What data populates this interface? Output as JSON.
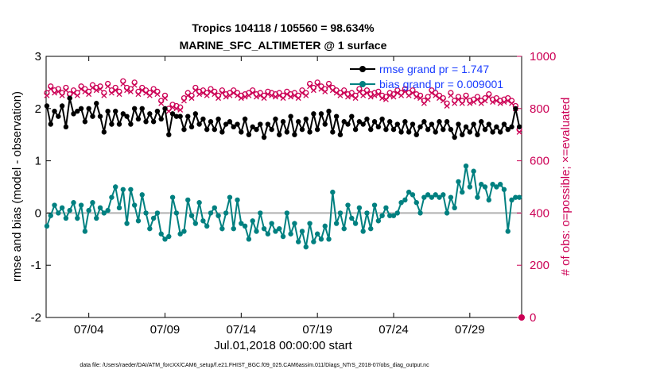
{
  "chart_data": {
    "type": "line",
    "title_line1": "Tropics 104118 / 105560 = 98.634%",
    "title_line2": "MARINE_SFC_ALTIMETER @ 1 surface",
    "xlabel": "Jul.01,2018 00:00:00 start",
    "ylabel_left": "rmse and bias (model - observation)",
    "ylabel_right": "# of obs: o=possible; ×=evaluated",
    "xlim": [
      1.2,
      32.4
    ],
    "ylim_left": [
      -2,
      3
    ],
    "ylim_right": [
      0,
      1000
    ],
    "x_ticks": [
      4,
      9,
      14,
      19,
      24,
      29
    ],
    "x_tick_labels": [
      "07/04",
      "07/09",
      "07/14",
      "07/19",
      "07/24",
      "07/29"
    ],
    "y_ticks_left": [
      -2,
      -1,
      0,
      1,
      2,
      3
    ],
    "y_tick_labels_left": [
      "-2",
      "-1",
      "0",
      "1",
      "2",
      "3"
    ],
    "y_ticks_right": [
      0,
      200,
      400,
      600,
      800,
      1000
    ],
    "y_tick_labels_right": [
      "0",
      "200",
      "400",
      "600",
      "800",
      "1000"
    ],
    "zero_line": 0,
    "legend": [
      {
        "label": "rmse grand pr = 1.747",
        "color": "#000000"
      },
      {
        "label": "bias grand pr = 0.009001",
        "color": "#008080"
      }
    ],
    "series": [
      {
        "name": "rmse",
        "axis": "left",
        "color": "#000000",
        "x": [
          1.25,
          1.5,
          1.75,
          2.0,
          2.25,
          2.5,
          2.75,
          3.0,
          3.25,
          3.5,
          3.75,
          4.0,
          4.25,
          4.5,
          4.75,
          5.0,
          5.25,
          5.5,
          5.75,
          6.0,
          6.25,
          6.5,
          6.75,
          7.0,
          7.25,
          7.5,
          7.75,
          8.0,
          8.25,
          8.5,
          8.75,
          9.0,
          9.25,
          9.5,
          9.75,
          10.0,
          10.25,
          10.5,
          10.75,
          11.0,
          11.25,
          11.5,
          11.75,
          12.0,
          12.25,
          12.5,
          12.75,
          13.0,
          13.25,
          13.5,
          13.75,
          14.0,
          14.25,
          14.5,
          14.75,
          15.0,
          15.25,
          15.5,
          15.75,
          16.0,
          16.25,
          16.5,
          16.75,
          17.0,
          17.25,
          17.5,
          17.75,
          18.0,
          18.25,
          18.5,
          18.75,
          19.0,
          19.25,
          19.5,
          19.75,
          20.0,
          20.25,
          20.5,
          20.75,
          21.0,
          21.25,
          21.5,
          21.75,
          22.0,
          22.25,
          22.5,
          22.75,
          23.0,
          23.25,
          23.5,
          23.75,
          24.0,
          24.25,
          24.5,
          24.75,
          25.0,
          25.25,
          25.5,
          25.75,
          26.0,
          26.25,
          26.5,
          26.75,
          27.0,
          27.25,
          27.5,
          27.75,
          28.0,
          28.25,
          28.5,
          28.75,
          29.0,
          29.25,
          29.5,
          29.75,
          30.0,
          30.25,
          30.5,
          30.75,
          31.0,
          31.25,
          31.5,
          31.75,
          32.0,
          32.25
        ],
        "values": [
          2.05,
          1.7,
          1.95,
          1.85,
          2.05,
          1.65,
          2.2,
          1.9,
          1.95,
          2.0,
          1.75,
          2.0,
          1.85,
          2.1,
          1.85,
          1.55,
          1.95,
          1.7,
          1.95,
          1.7,
          1.9,
          1.85,
          1.7,
          2.0,
          1.8,
          2.0,
          1.75,
          1.9,
          1.75,
          1.95,
          1.8,
          2.0,
          1.5,
          1.9,
          1.85,
          1.85,
          1.6,
          1.85,
          1.65,
          1.9,
          1.7,
          1.8,
          1.6,
          1.75,
          1.6,
          1.8,
          1.55,
          1.7,
          1.75,
          1.65,
          1.7,
          1.55,
          1.8,
          1.5,
          1.65,
          1.6,
          1.7,
          1.45,
          1.7,
          1.6,
          1.8,
          1.5,
          1.75,
          1.55,
          1.85,
          1.5,
          1.75,
          1.6,
          1.8,
          1.55,
          1.9,
          1.6,
          1.9,
          1.7,
          1.95,
          1.55,
          1.85,
          1.5,
          1.75,
          1.7,
          1.85,
          1.6,
          1.75,
          1.7,
          1.8,
          1.6,
          1.75,
          1.65,
          1.8,
          1.6,
          1.75,
          1.6,
          1.7,
          1.55,
          1.75,
          1.55,
          1.7,
          1.5,
          1.65,
          1.75,
          1.6,
          1.7,
          1.55,
          1.75,
          1.6,
          1.75,
          1.6,
          1.45,
          1.7,
          1.5,
          1.65,
          1.55,
          1.7,
          1.5,
          1.75,
          1.6,
          1.7,
          1.55,
          1.65,
          1.55,
          1.7,
          1.6,
          1.65,
          2.0,
          1.65
        ],
        "marker": "circle-filled"
      },
      {
        "name": "bias",
        "axis": "left",
        "color": "#008080",
        "x": [
          1.25,
          1.5,
          1.75,
          2.0,
          2.25,
          2.5,
          2.75,
          3.0,
          3.25,
          3.5,
          3.75,
          4.0,
          4.25,
          4.5,
          4.75,
          5.0,
          5.25,
          5.5,
          5.75,
          6.0,
          6.25,
          6.5,
          6.75,
          7.0,
          7.25,
          7.5,
          7.75,
          8.0,
          8.25,
          8.5,
          8.75,
          9.0,
          9.25,
          9.5,
          9.75,
          10.0,
          10.25,
          10.5,
          10.75,
          11.0,
          11.25,
          11.5,
          11.75,
          12.0,
          12.25,
          12.5,
          12.75,
          13.0,
          13.25,
          13.5,
          13.75,
          14.0,
          14.25,
          14.5,
          14.75,
          15.0,
          15.25,
          15.5,
          15.75,
          16.0,
          16.25,
          16.5,
          16.75,
          17.0,
          17.25,
          17.5,
          17.75,
          18.0,
          18.25,
          18.5,
          18.75,
          19.0,
          19.25,
          19.5,
          19.75,
          20.0,
          20.25,
          20.5,
          20.75,
          21.0,
          21.25,
          21.5,
          21.75,
          22.0,
          22.25,
          22.5,
          22.75,
          23.0,
          23.25,
          23.5,
          23.75,
          24.0,
          24.25,
          24.5,
          24.75,
          25.0,
          25.25,
          25.5,
          25.75,
          26.0,
          26.25,
          26.5,
          26.75,
          27.0,
          27.25,
          27.5,
          27.75,
          28.0,
          28.25,
          28.5,
          28.75,
          29.0,
          29.25,
          29.5,
          29.75,
          30.0,
          30.25,
          30.5,
          30.75,
          31.0,
          31.25,
          31.5,
          31.75,
          32.0,
          32.25
        ],
        "values": [
          -0.25,
          -0.05,
          0.15,
          0.0,
          0.1,
          -0.1,
          0.05,
          0.2,
          -0.1,
          0.15,
          -0.35,
          0.05,
          0.2,
          -0.1,
          0.1,
          0.0,
          0.05,
          0.3,
          0.5,
          0.1,
          0.45,
          -0.2,
          0.45,
          0.15,
          -0.15,
          0.35,
          0.0,
          -0.3,
          -0.1,
          0.0,
          -0.4,
          -0.5,
          -0.45,
          0.3,
          0.0,
          -0.4,
          -0.35,
          0.25,
          -0.05,
          -0.2,
          0.2,
          -0.15,
          -0.25,
          0.0,
          0.1,
          -0.05,
          -0.3,
          0.0,
          0.3,
          -0.3,
          0.25,
          -0.2,
          -0.25,
          -0.5,
          -0.15,
          -0.35,
          0.0,
          -0.3,
          -0.4,
          -0.2,
          -0.35,
          -0.3,
          -0.45,
          0.0,
          -0.4,
          -0.2,
          -0.55,
          -0.35,
          -0.65,
          -0.2,
          -0.55,
          -0.4,
          -0.5,
          -0.25,
          -0.5,
          0.4,
          -0.2,
          0.0,
          -0.3,
          0.15,
          -0.1,
          -0.2,
          0.1,
          -0.35,
          0.0,
          -0.3,
          0.15,
          -0.15,
          -0.05,
          0.1,
          -0.05,
          -0.05,
          0.0,
          0.2,
          0.25,
          0.4,
          0.35,
          0.2,
          0.0,
          0.3,
          0.35,
          0.3,
          0.35,
          0.3,
          0.35,
          0.0,
          0.3,
          0.1,
          0.6,
          0.4,
          0.9,
          0.5,
          0.8,
          0.3,
          0.55,
          0.5,
          0.25,
          0.55,
          0.5,
          0.55,
          0.45,
          -0.35,
          0.25,
          0.3,
          0.3
        ],
        "marker": "circle-filled"
      },
      {
        "name": "obs possible",
        "axis": "right",
        "color": "#cc0055",
        "x": [
          1.25,
          1.5,
          1.75,
          2.0,
          2.25,
          2.5,
          2.75,
          3.0,
          3.25,
          3.5,
          3.75,
          4.0,
          4.25,
          4.5,
          4.75,
          5.0,
          5.25,
          5.5,
          5.75,
          6.0,
          6.25,
          6.5,
          6.75,
          7.0,
          7.25,
          7.5,
          7.75,
          8.0,
          8.25,
          8.5,
          8.75,
          9.0,
          9.25,
          9.5,
          9.75,
          10.0,
          10.25,
          10.5,
          10.75,
          11.0,
          11.25,
          11.5,
          11.75,
          12.0,
          12.25,
          12.5,
          12.75,
          13.0,
          13.25,
          13.5,
          13.75,
          14.0,
          14.25,
          14.5,
          14.75,
          15.0,
          15.25,
          15.5,
          15.75,
          16.0,
          16.25,
          16.5,
          16.75,
          17.0,
          17.25,
          17.5,
          17.75,
          18.0,
          18.25,
          18.5,
          18.75,
          19.0,
          19.25,
          19.5,
          19.75,
          20.0,
          20.25,
          20.5,
          20.75,
          21.0,
          21.25,
          21.5,
          21.75,
          22.0,
          22.25,
          22.5,
          22.75,
          23.0,
          23.25,
          23.5,
          23.75,
          24.0,
          24.25,
          24.5,
          24.75,
          25.0,
          25.25,
          25.5,
          25.75,
          26.0,
          26.25,
          26.5,
          26.75,
          27.0,
          27.25,
          27.5,
          27.75,
          28.0,
          28.25,
          28.5,
          28.75,
          29.0,
          29.25,
          29.5,
          29.75,
          30.0,
          30.25,
          30.5,
          30.75,
          31.0,
          31.25,
          31.5,
          31.75,
          32.0,
          32.25
        ],
        "values": [
          860,
          885,
          870,
          875,
          860,
          880,
          855,
          870,
          860,
          885,
          875,
          865,
          890,
          880,
          885,
          860,
          895,
          870,
          880,
          865,
          905,
          880,
          875,
          900,
          865,
          880,
          870,
          860,
          875,
          865,
          830,
          850,
          800,
          815,
          810,
          805,
          840,
          860,
          850,
          880,
          865,
          870,
          860,
          875,
          865,
          850,
          870,
          855,
          860,
          870,
          860,
          850,
          855,
          860,
          870,
          855,
          860,
          850,
          865,
          860,
          855,
          860,
          850,
          865,
          855,
          860,
          850,
          870,
          860,
          895,
          880,
          900,
          885,
          875,
          895,
          880,
          870,
          860,
          870,
          855,
          860,
          850,
          875,
          860,
          870,
          855,
          860,
          865,
          850,
          845,
          860,
          855,
          870,
          860,
          875,
          860,
          870,
          855,
          850,
          830,
          845,
          870,
          860,
          850,
          840,
          820,
          860,
          830,
          845,
          830,
          850,
          830,
          835,
          845,
          830,
          840,
          855,
          835,
          840,
          830,
          835,
          840,
          830,
          810,
          720
        ],
        "marker": "circle-open"
      },
      {
        "name": "obs evaluated",
        "axis": "right",
        "color": "#cc0055",
        "x": [
          1.25,
          1.5,
          1.75,
          2.0,
          2.25,
          2.5,
          2.75,
          3.0,
          3.25,
          3.5,
          3.75,
          4.0,
          4.25,
          4.5,
          4.75,
          5.0,
          5.25,
          5.5,
          5.75,
          6.0,
          6.25,
          6.5,
          6.75,
          7.0,
          7.25,
          7.5,
          7.75,
          8.0,
          8.25,
          8.5,
          8.75,
          9.0,
          9.25,
          9.5,
          9.75,
          10.0,
          10.25,
          10.5,
          10.75,
          11.0,
          11.25,
          11.5,
          11.75,
          12.0,
          12.25,
          12.5,
          12.75,
          13.0,
          13.25,
          13.5,
          13.75,
          14.0,
          14.25,
          14.5,
          14.75,
          15.0,
          15.25,
          15.5,
          15.75,
          16.0,
          16.25,
          16.5,
          16.75,
          17.0,
          17.25,
          17.5,
          17.75,
          18.0,
          18.25,
          18.5,
          18.75,
          19.0,
          19.25,
          19.5,
          19.75,
          20.0,
          20.25,
          20.5,
          20.75,
          21.0,
          21.25,
          21.5,
          21.75,
          22.0,
          22.25,
          22.5,
          22.75,
          23.0,
          23.25,
          23.5,
          23.75,
          24.0,
          24.25,
          24.5,
          24.75,
          25.0,
          25.25,
          25.5,
          25.75,
          26.0,
          26.25,
          26.5,
          26.75,
          27.0,
          27.25,
          27.5,
          27.75,
          28.0,
          28.25,
          28.5,
          28.75,
          29.0,
          29.25,
          29.5,
          29.75,
          30.0,
          30.25,
          30.5,
          30.75,
          31.0,
          31.25,
          31.5,
          31.75,
          32.0,
          32.25
        ],
        "values": [
          850,
          875,
          860,
          865,
          850,
          870,
          845,
          860,
          850,
          875,
          865,
          855,
          880,
          870,
          875,
          850,
          885,
          860,
          870,
          855,
          895,
          870,
          865,
          890,
          855,
          870,
          860,
          850,
          865,
          855,
          820,
          840,
          790,
          805,
          800,
          795,
          830,
          850,
          840,
          870,
          855,
          860,
          850,
          865,
          855,
          840,
          860,
          845,
          850,
          860,
          850,
          840,
          845,
          850,
          860,
          845,
          850,
          840,
          855,
          850,
          845,
          850,
          840,
          855,
          845,
          850,
          840,
          860,
          850,
          885,
          870,
          890,
          875,
          865,
          885,
          870,
          860,
          850,
          860,
          845,
          850,
          840,
          865,
          850,
          860,
          845,
          850,
          855,
          840,
          835,
          850,
          845,
          860,
          850,
          865,
          850,
          860,
          845,
          840,
          820,
          835,
          860,
          850,
          840,
          830,
          810,
          850,
          820,
          835,
          820,
          840,
          820,
          825,
          835,
          820,
          830,
          845,
          825,
          830,
          820,
          825,
          830,
          820,
          800,
          710
        ],
        "marker": "x"
      }
    ],
    "extra_points": [
      {
        "series": "obs possible",
        "x": 32.4,
        "y_right": 0
      }
    ],
    "footer": "data file: /Users/raeder/DAI/ATM_forcXX/CAM6_setup/f.e21.FHIST_BGC.f09_025.CAM6assim.011/Diags_NTrS_2018-07/obs_diag_output.nc"
  }
}
